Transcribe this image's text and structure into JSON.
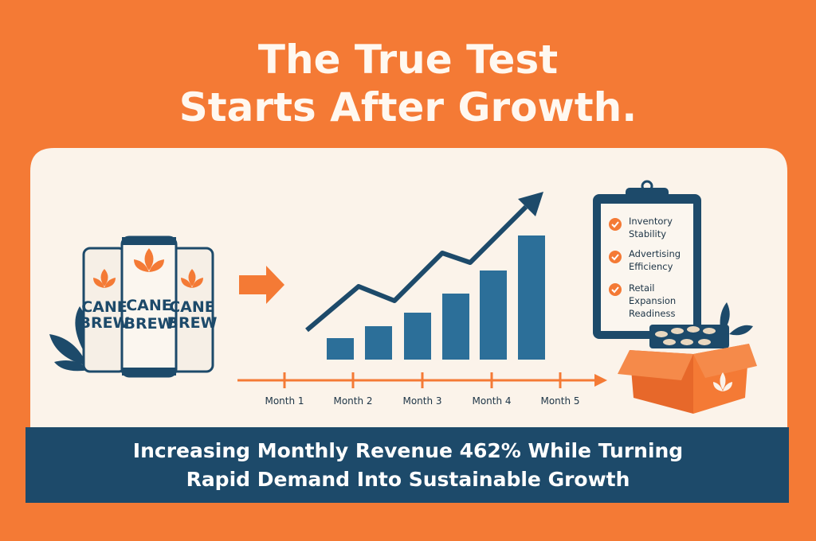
{
  "header": {
    "title_lines": [
      "The True Test",
      "Starts After Growth."
    ]
  },
  "cans": [
    {
      "lines": [
        "CANE",
        "BREW"
      ]
    },
    {
      "lines": [
        "CANE",
        "BREW"
      ]
    },
    {
      "lines": [
        "CANE",
        "BREW"
      ]
    }
  ],
  "timeline": {
    "labels": [
      "Month 1",
      "Month 2",
      "Month 3",
      "Month 4",
      "Month 5"
    ]
  },
  "checklist": {
    "items": [
      {
        "lines": [
          "Inventory",
          "Stability"
        ]
      },
      {
        "lines": [
          "Advertising",
          "Efficiency"
        ]
      },
      {
        "lines": [
          "Retail",
          "Expansion",
          "Readiness"
        ]
      }
    ]
  },
  "banner": {
    "lines": [
      "Increasing Monthly Revenue 462% While Turning",
      "Rapid Demand Into Sustainable Growth"
    ]
  }
}
